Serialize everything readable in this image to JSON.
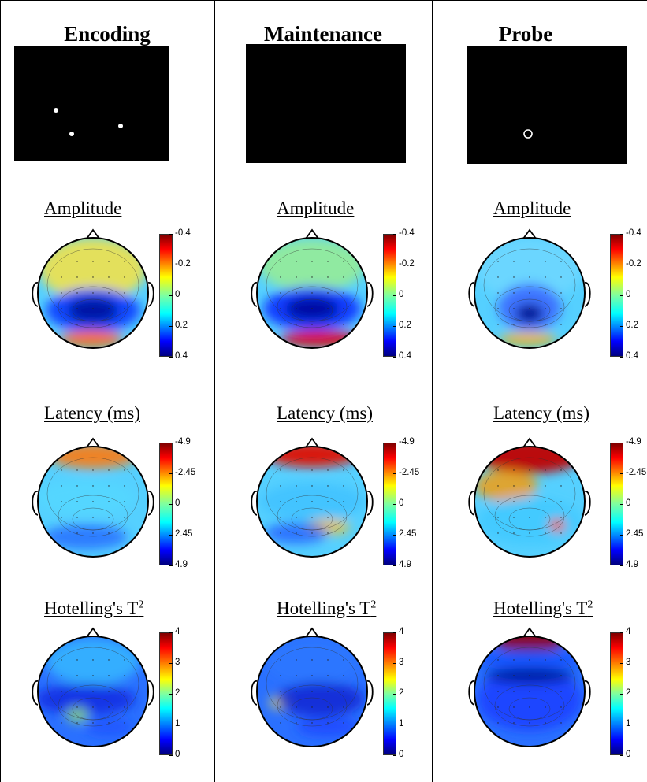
{
  "columns": [
    {
      "key": "encoding",
      "title": "Encoding",
      "stimulus": "three white dots"
    },
    {
      "key": "maintenance",
      "title": "Maintenance",
      "stimulus": "blank"
    },
    {
      "key": "probe",
      "title": "Probe",
      "stimulus": "single open circle"
    }
  ],
  "rows": [
    {
      "key": "amplitude",
      "label": "Amplitude",
      "ticks": [
        "-0.4",
        "-0.2",
        "0",
        "0.2",
        "0.4"
      ],
      "colormap": "jet (reversed)"
    },
    {
      "key": "latency",
      "label": "Latency (ms)",
      "ticks": [
        "-4.9",
        "-2.45",
        "0",
        "2.45",
        "4.9"
      ],
      "colormap": "jet (reversed)"
    },
    {
      "key": "hotelling",
      "label": "Hotelling's T",
      "label_sup": "2",
      "ticks": [
        "4",
        "3",
        "2",
        "1",
        "0"
      ],
      "colormap": "jet"
    }
  ],
  "probe_latency_tick_visible": "-2.45",
  "colors": {
    "background": "#ffffff",
    "stimulus": "#000000",
    "red": "#8b0000",
    "blue": "#00008b"
  }
}
